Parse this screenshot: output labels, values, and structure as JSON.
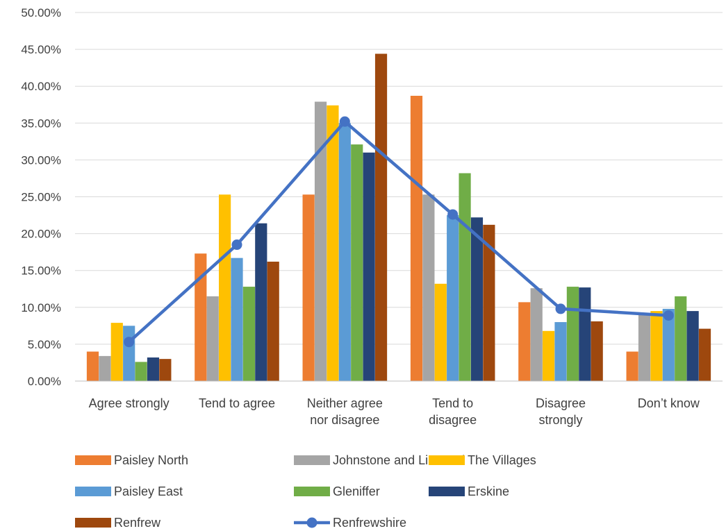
{
  "chart_data": {
    "type": "bar",
    "title": "",
    "xlabel": "",
    "ylabel": "",
    "ylim": [
      0,
      50
    ],
    "yticks": [
      "0.00%",
      "5.00%",
      "10.00%",
      "15.00%",
      "20.00%",
      "25.00%",
      "30.00%",
      "35.00%",
      "40.00%",
      "45.00%",
      "50.00%"
    ],
    "grid": true,
    "legend": "bottom",
    "categories": [
      [
        "Agree strongly"
      ],
      [
        "Tend to agree"
      ],
      [
        "Neither agree",
        "nor disagree"
      ],
      [
        "Tend to",
        "disagree"
      ],
      [
        "Disagree",
        "strongly"
      ],
      [
        "Don’t know"
      ]
    ],
    "series": [
      {
        "name": "Paisley North",
        "kind": "bar",
        "color": "#ED7D31",
        "values": [
          4.0,
          17.3,
          25.3,
          38.7,
          10.7,
          4.0
        ]
      },
      {
        "name": "Johnstone and Linwood",
        "kind": "bar",
        "color": "#A5A5A5",
        "values": [
          3.4,
          11.5,
          37.9,
          25.3,
          12.6,
          9.2
        ]
      },
      {
        "name": "The Villages",
        "kind": "bar",
        "color": "#FFC000",
        "values": [
          7.9,
          25.3,
          37.4,
          13.2,
          6.8,
          9.5
        ]
      },
      {
        "name": "Paisley East",
        "kind": "bar",
        "color": "#5B9BD5",
        "values": [
          7.5,
          16.7,
          35.0,
          22.5,
          8.0,
          9.8
        ]
      },
      {
        "name": "Gleniffer",
        "kind": "bar",
        "color": "#70AD47",
        "values": [
          2.6,
          12.8,
          32.1,
          28.2,
          12.8,
          11.5
        ]
      },
      {
        "name": "Erskine",
        "kind": "bar",
        "color": "#264478",
        "values": [
          3.2,
          21.4,
          31.0,
          22.2,
          12.7,
          9.5
        ]
      },
      {
        "name": "Renfrew",
        "kind": "bar",
        "color": "#9E480E",
        "values": [
          3.0,
          16.2,
          44.4,
          21.2,
          8.1,
          7.1
        ]
      },
      {
        "name": "Renfrewshire",
        "kind": "line",
        "color": "#4472C4",
        "values": [
          5.3,
          18.5,
          35.2,
          22.6,
          9.8,
          8.9
        ]
      }
    ]
  }
}
